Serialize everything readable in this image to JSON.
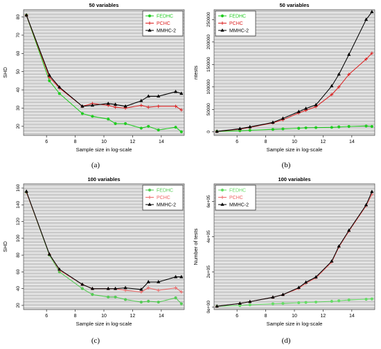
{
  "panels": [
    {
      "caption": "(a)",
      "chart_data": {
        "type": "line",
        "title": "50 variables",
        "xlabel": "Sample size in log-scale",
        "ylabel": "SHD",
        "xlim": [
          4.4,
          15.6
        ],
        "ylim": [
          15,
          84
        ],
        "xticks": [
          6,
          8,
          10,
          12,
          14
        ],
        "xtick_labels": [
          "6",
          "8",
          "10",
          "12",
          "14"
        ],
        "yticks": [
          20,
          30,
          40,
          50,
          60,
          70,
          80
        ],
        "ytick_labels": [
          "20",
          "30",
          "40",
          "50",
          "60",
          "70",
          "80"
        ],
        "grid": true,
        "legend_position": "top-right",
        "x": [
          4.6,
          6.2,
          6.9,
          8.5,
          9.2,
          10.3,
          10.8,
          11.5,
          12.6,
          13.1,
          13.8,
          15.0,
          15.4
        ],
        "series": [
          {
            "name": "FEDHC",
            "color": "#22cc22",
            "marker": "circle",
            "values": [
              81,
              45,
              38,
              27,
              25.5,
              24,
              21.5,
              21.5,
              19,
              20,
              18,
              19.5,
              17
            ]
          },
          {
            "name": "PCHC",
            "color": "#dd2222",
            "marker": "plus",
            "values": [
              81,
              47,
              41,
              31,
              32.5,
              31.5,
              30.5,
              30,
              31.5,
              30.5,
              31,
              31,
              29
            ]
          },
          {
            "name": "MMHC-2",
            "color": "#000000",
            "marker": "triangle",
            "values": [
              81,
              48,
              41.5,
              31,
              31.5,
              32.5,
              32,
              31,
              34,
              36.5,
              36.5,
              39,
              38
            ]
          }
        ]
      }
    },
    {
      "caption": "(b)",
      "chart_data": {
        "type": "line",
        "title": "50 variables",
        "xlabel": "Sample size in log-scale",
        "ylabel": "ntests",
        "xlim": [
          4.4,
          15.6
        ],
        "ylim": [
          -8000,
          272000
        ],
        "xticks": [
          6,
          8,
          10,
          12,
          14
        ],
        "xtick_labels": [
          "6",
          "8",
          "10",
          "12",
          "14"
        ],
        "yticks": [
          0,
          50000,
          100000,
          150000,
          200000,
          250000
        ],
        "ytick_labels": [
          "0",
          "50000",
          "100000",
          "150000",
          "200000",
          "250000"
        ],
        "grid": true,
        "legend_position": "top-left",
        "x": [
          4.6,
          6.2,
          6.9,
          8.5,
          9.2,
          10.3,
          10.8,
          11.5,
          12.6,
          13.1,
          13.8,
          15.0,
          15.4
        ],
        "series": [
          {
            "name": "FEDHC",
            "color": "#22cc22",
            "marker": "circle",
            "values": [
              1000,
              2500,
              3500,
              5500,
              6500,
              8000,
              9000,
              9500,
              10000,
              11000,
              12000,
              13000,
              12000
            ]
          },
          {
            "name": "PCHC",
            "color": "#dd2222",
            "marker": "plus",
            "values": [
              1000,
              6000,
              10000,
              20000,
              27000,
              42000,
              48000,
              56000,
              83000,
              100000,
              128000,
              162000,
              175000
            ]
          },
          {
            "name": "MMHC-2",
            "color": "#000000",
            "marker": "triangle",
            "values": [
              1000,
              7000,
              11000,
              21000,
              30000,
              45000,
              52000,
              60000,
              102000,
              128000,
              172000,
              250000,
              267000
            ]
          }
        ]
      }
    },
    {
      "caption": "(c)",
      "chart_data": {
        "type": "line",
        "title": "100 variables",
        "xlabel": "Sample size in log-scale",
        "ylabel": "SHD",
        "xlim": [
          4.4,
          15.6
        ],
        "ylim": [
          15,
          165
        ],
        "xticks": [
          6,
          8,
          10,
          12,
          14
        ],
        "xtick_labels": [
          "6",
          "8",
          "10",
          "12",
          "14"
        ],
        "yticks": [
          20,
          40,
          60,
          80,
          100,
          120,
          140,
          160
        ],
        "ytick_labels": [
          "20",
          "40",
          "60",
          "80",
          "100",
          "120",
          "140",
          "160"
        ],
        "grid": true,
        "legend_position": "top-right",
        "x": [
          4.6,
          6.2,
          6.9,
          8.5,
          9.2,
          10.3,
          10.8,
          11.5,
          12.6,
          13.1,
          13.8,
          15.0,
          15.4
        ],
        "series": [
          {
            "name": "FEDHC",
            "color": "#55cc55",
            "marker": "circle",
            "values": [
              155,
              80,
              60,
              40,
              33,
              30,
              30,
              27,
              24,
              25,
              24,
              29,
              22
            ]
          },
          {
            "name": "PCHC",
            "color": "#ee6666",
            "marker": "plus",
            "values": [
              155,
              81,
              62,
              45,
              40,
              40,
              40,
              38,
              36,
              41,
              38,
              41,
              36
            ]
          },
          {
            "name": "MMHC-2",
            "color": "#000000",
            "marker": "triangle",
            "values": [
              156,
              81,
              63,
              45,
              40,
              40,
              40,
              41,
              39,
              48,
              48,
              54,
              54
            ]
          }
        ]
      }
    },
    {
      "caption": "(d)",
      "chart_data": {
        "type": "line",
        "title": "100 variables",
        "xlabel": "Sample size in log-scale",
        "ylabel": "Number of tests",
        "xlim": [
          4.4,
          15.6
        ],
        "ylim": [
          -15000,
          700000
        ],
        "xticks": [
          6,
          8,
          10,
          12,
          14
        ],
        "xtick_labels": [
          "6",
          "8",
          "10",
          "12",
          "14"
        ],
        "yticks": [
          0,
          200000,
          400000,
          600000
        ],
        "ytick_labels": [
          "0e+00",
          "2e+05",
          "4e+05",
          "6e+05"
        ],
        "grid": true,
        "legend_position": "top-left",
        "x": [
          4.6,
          6.2,
          6.9,
          8.5,
          9.2,
          10.3,
          10.8,
          11.5,
          12.6,
          13.1,
          13.8,
          15.0,
          15.4
        ],
        "series": [
          {
            "name": "FEDHC",
            "color": "#66dd66",
            "marker": "circle",
            "values": [
              4000,
              8000,
              12000,
              18000,
              20000,
              24000,
              26000,
              28000,
              32000,
              35000,
              40000,
              44000,
              46000
            ]
          },
          {
            "name": "PCHC",
            "color": "#ee6666",
            "marker": "plus",
            "values": [
              4000,
              20000,
              30000,
              55000,
              70000,
              105000,
              135000,
              165000,
              255000,
              340000,
              430000,
              575000,
              640000
            ]
          },
          {
            "name": "MMHC-2",
            "color": "#000000",
            "marker": "triangle",
            "values": [
              4000,
              20000,
              30000,
              55000,
              70000,
              110000,
              140000,
              170000,
              260000,
              345000,
              435000,
              580000,
              655000
            ]
          }
        ]
      }
    }
  ]
}
